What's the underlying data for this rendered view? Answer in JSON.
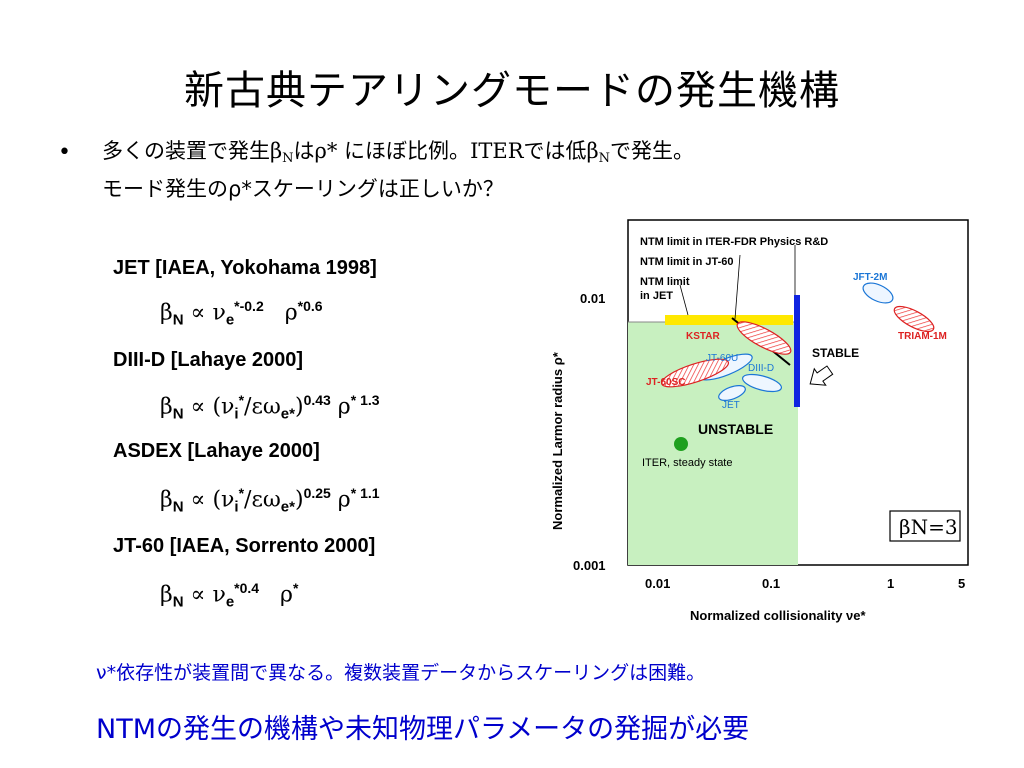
{
  "title": "新古典テアリングモードの発生機構",
  "bullet": {
    "line1_a": "多くの装置で発生",
    "beta": "β",
    "sub_N": "N",
    "line1_b": "は",
    "rho_star": "ρ*",
    "line1_c": " にほぼ比例。",
    "iter": "ITER",
    "line1_d": "では低",
    "line1_e": "で発生。",
    "line2": "モード発生のρ*スケーリングは正しいか？"
  },
  "formulas": [
    {
      "head": "JET [IAEA, Yokohama 1998]",
      "body": "βN ∝ νe*^-0.2 ρ*^0.6"
    },
    {
      "head": "DIII-D  [Lahaye 2000]",
      "body": "βN ∝ (νi*/εωe*)^0.43 ρ*^1.3"
    },
    {
      "head": "ASDEX  [Lahaye 2000]",
      "body": "βN ∝ (νi*/εωe*)^0.25 ρ*^1.1"
    },
    {
      "head": "JT-60 [IAEA, Sorrento 2000]",
      "body": "βN ∝ νe*^0.4 ρ*"
    }
  ],
  "chart": {
    "ylabel": "Normalized Larmor radius ρ*",
    "xlabel": "Normalized collisionality νe*",
    "yticks": [
      "0.01",
      "0.001"
    ],
    "xticks": [
      "0.01",
      "0.1",
      "1",
      "5"
    ],
    "labels": {
      "ntm_iter": "NTM limit in ITER-FDR Physics R&D",
      "ntm_jt60": "NTM limit in JT-60",
      "ntm_jet1": "NTM limit",
      "ntm_jet2": "in JET",
      "jft2m": "JFT-2M",
      "triam": "TRIAM-1M",
      "kstar": "KSTAR",
      "stable": "STABLE",
      "jt60u": "JT-60U",
      "diiid": "DIII-D",
      "jt60sc": "JT-60SC",
      "jet": "JET",
      "unstable": "UNSTABLE",
      "iter_ss": "ITER, steady state",
      "betaN3": "βN=3"
    }
  },
  "notes": {
    "line1": "ν*依存性が装置間で異なる。複数装置データからスケーリングは困難。",
    "line2": "NTMの発生の機構や未知物理パラメータの発掘が必要"
  }
}
